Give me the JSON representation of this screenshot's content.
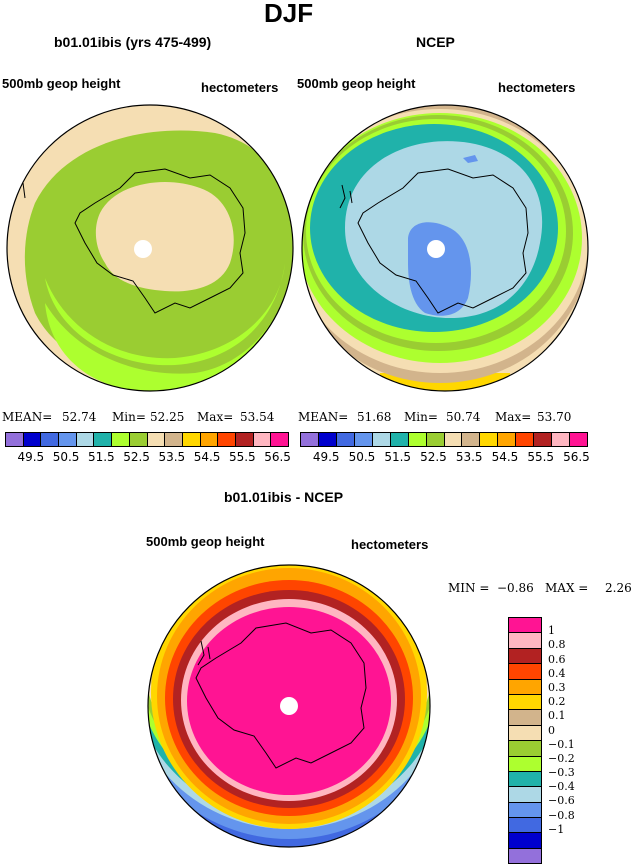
{
  "title": "DJF",
  "panel_left": {
    "title": "b01.01ibis (yrs 475-499)",
    "left_label": "500mb geop height",
    "right_label": "hectometers",
    "mean_label": "MEAN=",
    "mean": "52.74",
    "min_label": "Min=",
    "min": "52.25",
    "max_label": "Max=",
    "max": "53.54"
  },
  "panel_right": {
    "title": "NCEP",
    "left_label": "500mb geop height",
    "right_label": "hectometers",
    "mean_label": "MEAN=",
    "mean": "51.68",
    "min_label": "Min=",
    "min": "50.74",
    "max_label": "Max=",
    "max": "53.70"
  },
  "panel_diff": {
    "title": "b01.01ibis - NCEP",
    "left_label": "500mb geop height",
    "right_label": "hectometers",
    "min_label": "MIN =",
    "min": "−0.86",
    "max_label": "MAX =",
    "max": "2.26"
  },
  "colorbar_top": {
    "colors": [
      "#9370db",
      "#0000cd",
      "#4169e1",
      "#6495ed",
      "#add8e6",
      "#20b2aa",
      "#adff2f",
      "#9acd32",
      "#f5deb3",
      "#d2b48c",
      "#ffd700",
      "#ffa500",
      "#ff4500",
      "#b22222",
      "#ffb6c1",
      "#ff1493"
    ],
    "labels": [
      "49.5",
      "50.5",
      "51.5",
      "52.5",
      "53.5",
      "54.5",
      "55.5",
      "56.5"
    ]
  },
  "colorbar_diff": {
    "colors": [
      "#ff1493",
      "#ffb6c1",
      "#b22222",
      "#ff4500",
      "#ffa500",
      "#ffd700",
      "#d2b48c",
      "#f5deb3",
      "#9acd32",
      "#adff2f",
      "#20b2aa",
      "#add8e6",
      "#6495ed",
      "#4169e1",
      "#0000cd",
      "#9370db"
    ],
    "labels": [
      "1",
      "0.8",
      "0.6",
      "0.4",
      "0.3",
      "0.2",
      "0.1",
      "0",
      "−0.1",
      "−0.2",
      "−0.3",
      "−0.4",
      "−0.6",
      "−0.8",
      "−1"
    ]
  }
}
